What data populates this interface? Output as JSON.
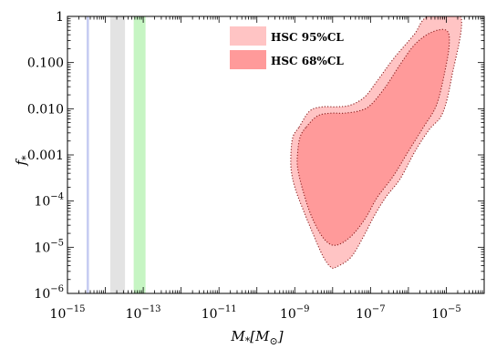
{
  "chart_data": {
    "type": "area",
    "xlabel_main": "M",
    "xlabel_sub": "*",
    "xlabel_unit": "[M",
    "xlabel_unit_sub": "⊙",
    "xlabel_close": "]",
    "ylabel_main": "f",
    "ylabel_sub": "*",
    "x_scale": "log",
    "y_scale": "log",
    "xlim": [
      1e-15,
      0.0001
    ],
    "ylim": [
      1e-06,
      1
    ],
    "x_ticks": [
      {
        "value": 1e-15,
        "base": "10",
        "exp": "−15"
      },
      {
        "value": 1e-13,
        "base": "10",
        "exp": "−13"
      },
      {
        "value": 1e-11,
        "base": "10",
        "exp": "−11"
      },
      {
        "value": 1e-09,
        "base": "10",
        "exp": "−9"
      },
      {
        "value": 1e-07,
        "base": "10",
        "exp": "−7"
      },
      {
        "value": 1e-05,
        "base": "10",
        "exp": "−5"
      }
    ],
    "y_ticks": [
      {
        "value": 1e-06,
        "base": "10",
        "exp": "−6",
        "text": ""
      },
      {
        "value": 1e-05,
        "base": "10",
        "exp": "−5",
        "text": ""
      },
      {
        "value": 0.0001,
        "base": "10",
        "exp": "−4",
        "text": ""
      },
      {
        "value": 0.001,
        "base": "",
        "exp": "",
        "text": "0.001"
      },
      {
        "value": 0.01,
        "base": "",
        "exp": "",
        "text": "0.010"
      },
      {
        "value": 0.1,
        "base": "",
        "exp": "",
        "text": "0.100"
      },
      {
        "value": 1,
        "base": "",
        "exp": "",
        "text": "1"
      }
    ],
    "bands": [
      {
        "x_range": [
          3.2e-15,
          3.7e-15
        ],
        "color": "#c7cdf2"
      },
      {
        "x_range": [
          1.35e-14,
          3.3e-14
        ],
        "color": "#e3e3e3"
      },
      {
        "x_range": [
          5.6e-14,
          1.15e-13
        ],
        "color": "#c6f5c3"
      }
    ],
    "series": [
      {
        "name": "HSC 95%CL",
        "color": "#ffc4c4",
        "points": [
          [
            1.3e-09,
            0.004
          ],
          [
            2.5e-09,
            0.009
          ],
          [
            5.5e-09,
            0.011
          ],
          [
            1.3e-08,
            0.011
          ],
          [
            3e-08,
            0.012
          ],
          [
            7e-08,
            0.018
          ],
          [
            1.5e-07,
            0.04
          ],
          [
            4e-07,
            0.12
          ],
          [
            1.4e-06,
            0.4
          ],
          [
            3.3e-06,
            1.0
          ],
          [
            2.4e-05,
            1.0
          ],
          [
            1.4e-05,
            0.05
          ],
          [
            8e-06,
            0.008
          ],
          [
            3.5e-06,
            0.0035
          ],
          [
            1.5e-06,
            0.0012
          ],
          [
            6e-07,
            0.0003
          ],
          [
            2.5e-07,
            0.00012
          ],
          [
            1.2e-07,
            4.5e-05
          ],
          [
            6e-08,
            1.5e-05
          ],
          [
            3e-08,
            6e-06
          ],
          [
            1.3e-08,
            3.8e-06
          ],
          [
            9e-09,
            3.7e-06
          ],
          [
            5.5e-09,
            6.5e-06
          ],
          [
            3e-09,
            2e-05
          ],
          [
            1.6e-09,
            7e-05
          ],
          [
            1e-09,
            0.0002
          ],
          [
            8e-10,
            0.0005
          ],
          [
            8e-10,
            0.0012
          ],
          [
            9e-10,
            0.0025
          ]
        ]
      },
      {
        "name": "HSC 68%CL",
        "color": "#ff9a9a",
        "points": [
          [
            2e-09,
            0.004
          ],
          [
            4e-09,
            0.007
          ],
          [
            9e-09,
            0.008
          ],
          [
            2e-08,
            0.008
          ],
          [
            5e-08,
            0.009
          ],
          [
            1e-07,
            0.012
          ],
          [
            2.5e-07,
            0.03
          ],
          [
            6e-07,
            0.09
          ],
          [
            1.5e-06,
            0.25
          ],
          [
            4e-06,
            0.45
          ],
          [
            1e-05,
            0.5
          ],
          [
            1.2e-05,
            0.25
          ],
          [
            9e-06,
            0.06
          ],
          [
            5.5e-06,
            0.012
          ],
          [
            2.5e-06,
            0.004
          ],
          [
            1e-06,
            0.0012
          ],
          [
            4e-07,
            0.00035
          ],
          [
            1.5e-07,
            0.00012
          ],
          [
            7e-08,
            4e-05
          ],
          [
            3e-08,
            1.7e-05
          ],
          [
            1.2e-08,
            1.1e-05
          ],
          [
            6e-09,
            1.5e-05
          ],
          [
            3e-09,
            4e-05
          ],
          [
            1.8e-09,
            0.00013
          ],
          [
            1.2e-09,
            0.0005
          ],
          [
            1.2e-09,
            0.0012
          ],
          [
            1.4e-09,
            0.0025
          ]
        ]
      }
    ],
    "legend_position": "top-center"
  }
}
